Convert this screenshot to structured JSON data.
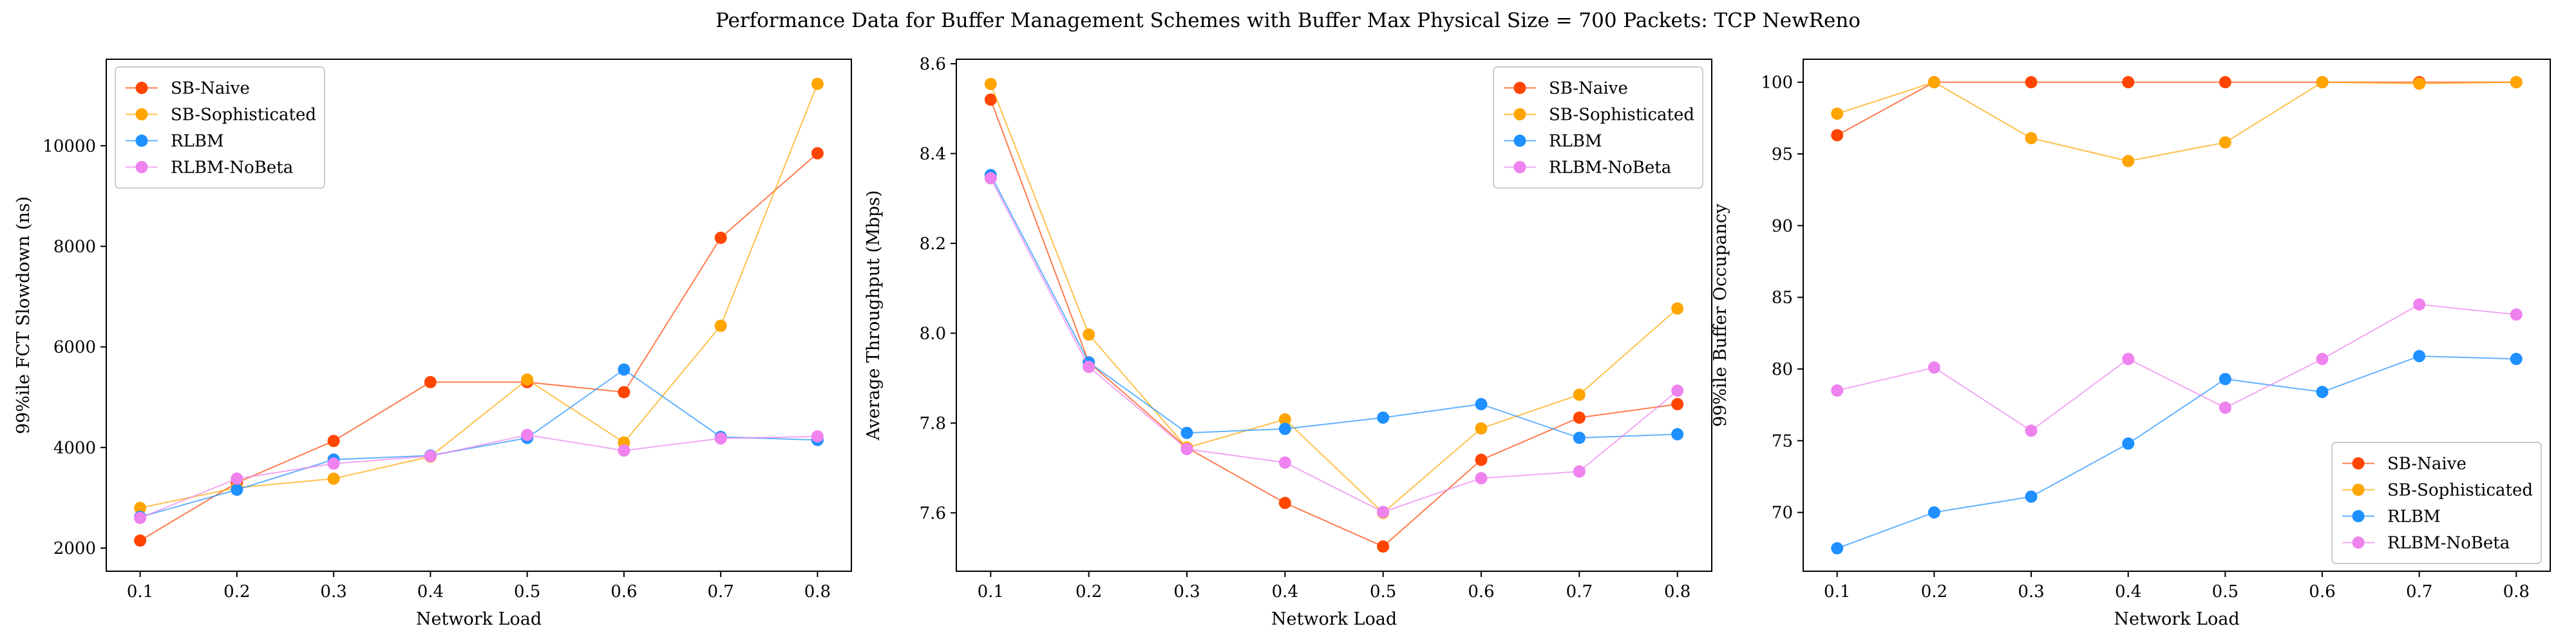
{
  "figure": {
    "title": "Performance Data for Buffer Management Schemes with Buffer Max Physical Size = 700 Packets: TCP NewReno"
  },
  "colors": {
    "SB-Naive": "#ff4500",
    "SB-Sophisticated": "#ffa500",
    "RLBM": "#1e90ff",
    "RLBM-NoBeta": "#ee82ee"
  },
  "chart_data": [
    {
      "type": "line",
      "xlabel": "Network Load",
      "ylabel": "99%ile FCT Slowdown (ns)",
      "legend_position": "upper-left",
      "grid": false,
      "xlim": [
        0.065,
        0.835
      ],
      "ylim": [
        1540,
        11720
      ],
      "xticks": [
        "0.1",
        "0.2",
        "0.3",
        "0.4",
        "0.5",
        "0.6",
        "0.7",
        "0.8"
      ],
      "yticks": [
        2000,
        4000,
        6000,
        8000,
        10000
      ],
      "x": [
        0.1,
        0.2,
        0.3,
        0.4,
        0.5,
        0.6,
        0.7,
        0.8
      ],
      "series": [
        {
          "name": "SB-Naive",
          "values": [
            2150,
            3300,
            4130,
            5300,
            5300,
            5100,
            8170,
            9850
          ]
        },
        {
          "name": "SB-Sophisticated",
          "values": [
            2800,
            3200,
            3380,
            3820,
            5350,
            4100,
            6420,
            11230
          ]
        },
        {
          "name": "RLBM",
          "values": [
            2620,
            3160,
            3760,
            3840,
            4190,
            5550,
            4210,
            4150
          ]
        },
        {
          "name": "RLBM-NoBeta",
          "values": [
            2600,
            3380,
            3680,
            3830,
            4250,
            3940,
            4180,
            4220
          ]
        }
      ]
    },
    {
      "type": "line",
      "xlabel": "Network Load",
      "ylabel": "Average Throughput (Mbps)",
      "legend_position": "upper-right",
      "grid": false,
      "xlim": [
        0.065,
        0.835
      ],
      "ylim": [
        7.47,
        8.61
      ],
      "xticks": [
        "0.1",
        "0.2",
        "0.3",
        "0.4",
        "0.5",
        "0.6",
        "0.7",
        "0.8"
      ],
      "yticks": [
        "7.6",
        "7.8",
        "8.0",
        "8.2",
        "8.4",
        "8.6"
      ],
      "x": [
        0.1,
        0.2,
        0.3,
        0.4,
        0.5,
        0.6,
        0.7,
        0.8
      ],
      "series": [
        {
          "name": "SB-Naive",
          "values": [
            8.52,
            7.935,
            7.745,
            7.622,
            7.525,
            7.718,
            7.812,
            7.842
          ]
        },
        {
          "name": "SB-Sophisticated",
          "values": [
            8.555,
            7.997,
            7.745,
            7.808,
            7.6,
            7.788,
            7.863,
            8.055
          ]
        },
        {
          "name": "RLBM",
          "values": [
            8.352,
            7.935,
            7.778,
            7.787,
            7.812,
            7.842,
            7.767,
            7.775
          ]
        },
        {
          "name": "RLBM-NoBeta",
          "values": [
            8.345,
            7.925,
            7.742,
            7.712,
            7.602,
            7.677,
            7.692,
            7.872
          ]
        }
      ]
    },
    {
      "type": "line",
      "xlabel": "Network Load",
      "ylabel": "99%ile Buffer Occupancy",
      "legend_position": "lower-right",
      "grid": false,
      "xlim": [
        0.065,
        0.835
      ],
      "ylim": [
        65.9,
        101.6
      ],
      "xticks": [
        "0.1",
        "0.2",
        "0.3",
        "0.4",
        "0.5",
        "0.6",
        "0.7",
        "0.8"
      ],
      "yticks": [
        70,
        75,
        80,
        85,
        90,
        95,
        100
      ],
      "x": [
        0.1,
        0.2,
        0.3,
        0.4,
        0.5,
        0.6,
        0.7,
        0.8
      ],
      "series": [
        {
          "name": "SB-Naive",
          "values": [
            96.3,
            100,
            100,
            100,
            100,
            100,
            100,
            100
          ]
        },
        {
          "name": "SB-Sophisticated",
          "values": [
            97.8,
            100,
            96.1,
            94.5,
            95.8,
            100,
            99.9,
            100
          ]
        },
        {
          "name": "RLBM",
          "values": [
            67.5,
            70,
            71.1,
            74.8,
            79.3,
            78.4,
            80.9,
            80.7
          ]
        },
        {
          "name": "RLBM-NoBeta",
          "values": [
            78.5,
            80.1,
            75.7,
            80.7,
            77.3,
            80.7,
            84.5,
            83.8
          ]
        }
      ]
    }
  ]
}
